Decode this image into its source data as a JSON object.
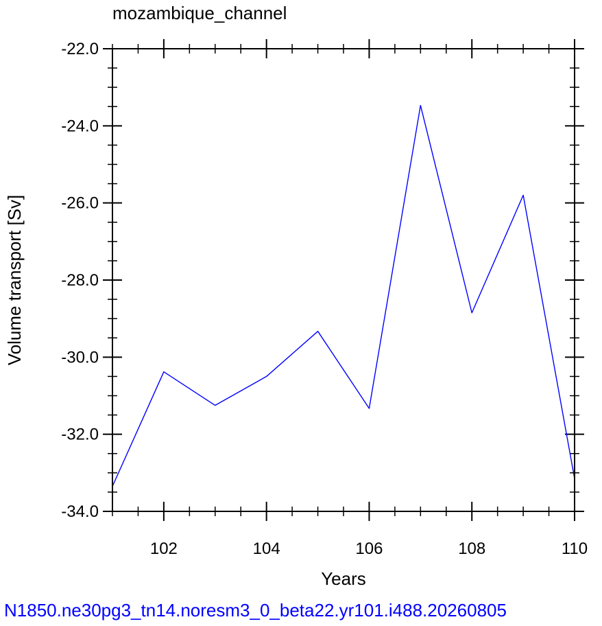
{
  "chart_data": {
    "type": "line",
    "title": "mozambique_channel",
    "xlabel": "Years",
    "ylabel": "Volume transport [Sv]",
    "footer": "N1850.ne30pg3_tn14.noresm3_0_beta22.yr101.i488.20260805",
    "xlim": [
      101,
      110
    ],
    "ylim": [
      -34,
      -22
    ],
    "x_ticks": [
      "102",
      "104",
      "106",
      "108",
      "110"
    ],
    "y_ticks": [
      "-22.0",
      "-24.0",
      "-26.0",
      "-28.0",
      "-30.0",
      "-32.0",
      "-34.0"
    ],
    "grid": false,
    "series": [
      {
        "color": "#0000ff",
        "x": [
          101,
          102,
          103,
          104,
          105,
          106,
          107,
          108,
          109,
          110
        ],
        "y": [
          -33.35,
          -30.38,
          -31.25,
          -30.5,
          -29.33,
          -31.33,
          -23.47,
          -28.85,
          -25.8,
          -33.15
        ]
      }
    ]
  }
}
